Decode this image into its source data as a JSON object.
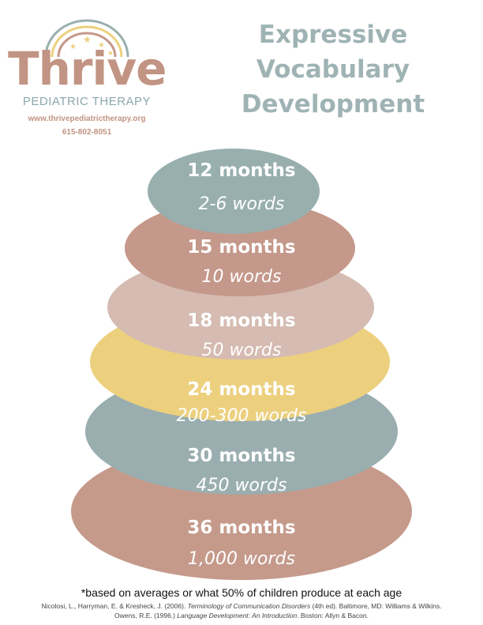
{
  "logo": {
    "brand": "Thrive",
    "subtitle": "PEDIATRIC THERAPY",
    "url": "www.thrivepediatrictherapy.org",
    "phone": "615-802-8051"
  },
  "title": {
    "line1": "Expressive",
    "line2": "Vocabulary",
    "line3": "Development"
  },
  "stages": [
    {
      "age": "12 months",
      "words": "2-6 words",
      "color": "#98afae"
    },
    {
      "age": "15 months",
      "words": "10 words",
      "color": "#c4988a"
    },
    {
      "age": "18 months",
      "words": "50 words",
      "color": "#d5bbb1"
    },
    {
      "age": "24 months",
      "words": "200-300 words",
      "color": "#ecd07e"
    },
    {
      "age": "30 months",
      "words": "450 words",
      "color": "#9aaeaf"
    },
    {
      "age": "36 months",
      "words": "1,000 words",
      "color": "#c59a8b"
    }
  ],
  "footer": {
    "note": "*based on averages or what 50% of children produce at each age",
    "citation1_pre": "Nicolosi,  L., Harryman, E. & Kresheck, J. (2006). ",
    "citation1_italic": "Terminology of Communication Disorders",
    "citation1_post": " (4th ed). Baltimore, MD: Williams & Wilkins.",
    "citation2_pre": "Owens, R.E. (1996.) ",
    "citation2_italic": "Language Development: An Introduction",
    "citation2_post": ". Boston: Allyn & Bacon."
  }
}
